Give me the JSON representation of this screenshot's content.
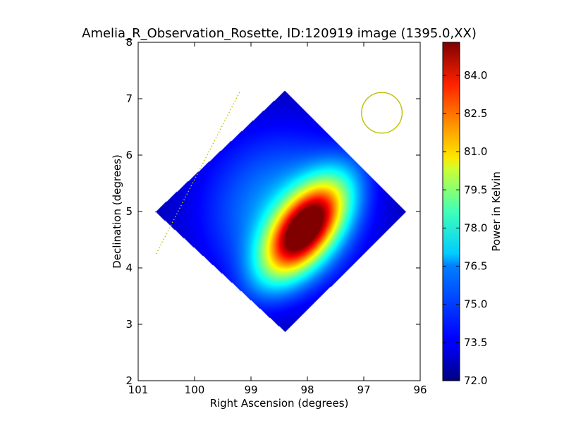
{
  "chart_data": {
    "type": "heatmap",
    "title": "Amelia_R_Observation_Rosette, ID:120919 image (1395.0,XX)",
    "xlabel": "Right Ascension (degrees)",
    "ylabel": "Declination (degrees)",
    "xlim": [
      101,
      96
    ],
    "ylim": [
      2,
      8
    ],
    "x_ticks": [
      "101",
      "100",
      "99",
      "98",
      "97",
      "96"
    ],
    "y_ticks": [
      "2",
      "3",
      "4",
      "5",
      "6",
      "7",
      "8"
    ],
    "colorbar": {
      "label": "Power in Kelvin",
      "colormap": "jet",
      "range": [
        72.0,
        85.3
      ],
      "ticks": [
        "72.0",
        "73.5",
        "75.0",
        "76.5",
        "78.0",
        "79.5",
        "81.0",
        "82.5",
        "84.0"
      ]
    },
    "map_footprint_corners": [
      [
        98.4,
        7.15
      ],
      [
        96.25,
        5.0
      ],
      [
        98.4,
        2.87
      ],
      [
        100.7,
        5.0
      ]
    ],
    "peak": {
      "ra": 98.05,
      "dec": 4.7,
      "value": 85.3
    },
    "background_value": 72.5,
    "beam_circle": {
      "ra": 96.68,
      "dec": 6.75,
      "radius_deg": 0.36,
      "color": "#bfbf00"
    },
    "dotted_line": {
      "from": [
        100.68,
        4.25
      ],
      "to": [
        99.2,
        7.12
      ],
      "color": "#bfbf00"
    }
  }
}
